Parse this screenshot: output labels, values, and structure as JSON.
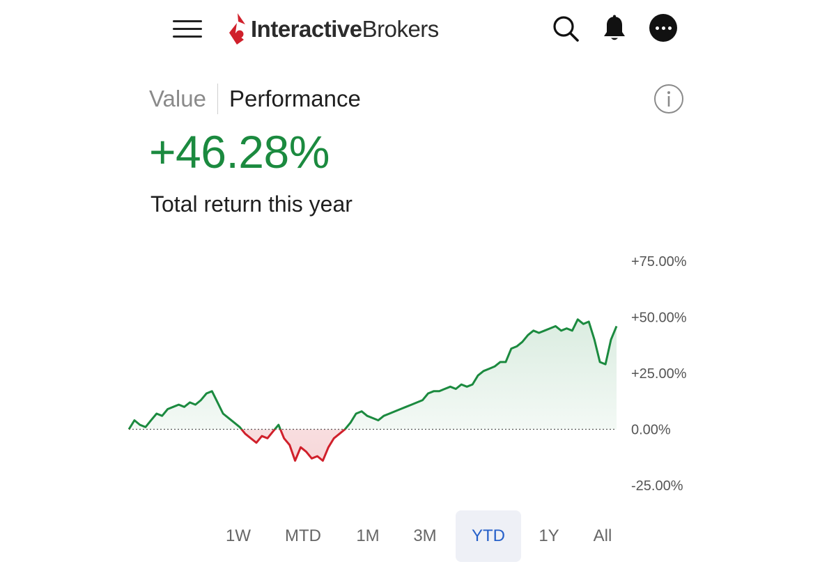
{
  "header": {
    "brand_bold": "Interactive",
    "brand_regular": "Brokers",
    "icons": {
      "menu": "hamburger-menu-icon",
      "search": "search-icon",
      "notifications": "bell-icon",
      "more": "more-dots-icon"
    }
  },
  "tabs": [
    {
      "label": "Value",
      "active": false
    },
    {
      "label": "Performance",
      "active": true
    }
  ],
  "summary": {
    "return_value": "+46.28%",
    "caption": "Total return this year"
  },
  "colors": {
    "positive": "#1b8a3f",
    "negative": "#d0202b",
    "selected_range_text": "#2660c9",
    "selected_range_bg": "#eef0f6"
  },
  "chart_data": {
    "type": "area",
    "y_tick_labels": [
      "+75.00%",
      "+50.00%",
      "+25.00%",
      "0.00%",
      "-25.00%"
    ],
    "y_ticks": [
      75,
      50,
      25,
      0,
      -25
    ],
    "ylim": [
      -25,
      75
    ],
    "baseline": 0,
    "grid": false,
    "series": [
      {
        "values": [
          0,
          4,
          2,
          1,
          4,
          7,
          6,
          9,
          10,
          11,
          10,
          12,
          11,
          13,
          16,
          17,
          12,
          7,
          5,
          3,
          1,
          -2,
          -4,
          -6,
          -3,
          -4,
          -1,
          2,
          -4,
          -7,
          -14,
          -8,
          -10,
          -13,
          -12,
          -14,
          -8,
          -4,
          -2,
          0,
          3,
          7,
          8,
          6,
          5,
          4,
          6,
          7,
          8,
          9,
          10,
          11,
          12,
          13,
          16,
          17,
          17,
          18,
          19,
          18,
          20,
          19,
          20,
          24,
          26,
          27,
          28,
          30,
          30,
          36,
          37,
          39,
          42,
          44,
          43,
          44,
          45,
          46,
          44,
          45,
          44,
          49,
          47,
          48,
          40,
          30,
          29,
          40,
          46
        ]
      }
    ]
  },
  "ranges": [
    {
      "label": "1W",
      "selected": false
    },
    {
      "label": "MTD",
      "selected": false
    },
    {
      "label": "1M",
      "selected": false
    },
    {
      "label": "3M",
      "selected": false
    },
    {
      "label": "YTD",
      "selected": true
    },
    {
      "label": "1Y",
      "selected": false
    },
    {
      "label": "All",
      "selected": false
    }
  ]
}
